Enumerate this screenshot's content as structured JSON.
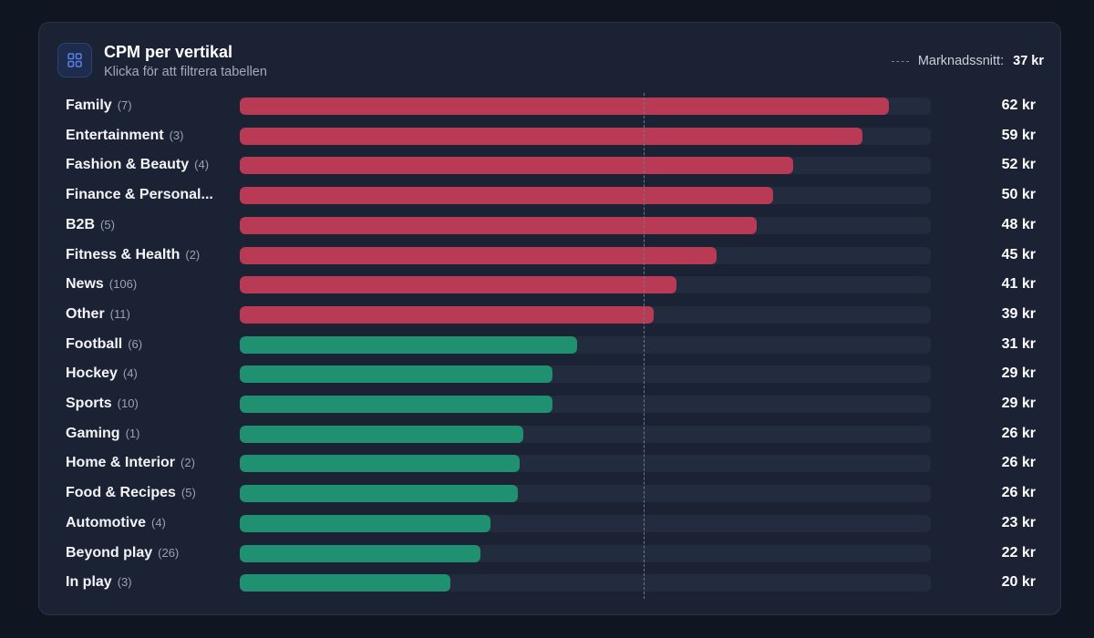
{
  "header": {
    "title": "CPM per vertikal",
    "subtitle": "Klicka för att filtrera tabellen",
    "icon": "grid-icon",
    "average_label": "Marknadssnitt:",
    "average_value": "37 kr"
  },
  "colors": {
    "above_average": "#b93a55",
    "below_average": "#1f9170",
    "track": "#232c3f",
    "accent": "#4d6fe0"
  },
  "chart_data": {
    "type": "bar",
    "orientation": "horizontal",
    "title": "CPM per vertikal",
    "unit": "kr",
    "xlim": [
      0,
      65
    ],
    "reference_line": {
      "label": "Marknadssnitt:",
      "value": 37
    },
    "categories": [
      "Family",
      "Entertainment",
      "Fashion & Beauty",
      "Finance & Personal...",
      "B2B",
      "Fitness & Health",
      "News",
      "Other",
      "Football",
      "Hockey",
      "Sports",
      "Gaming",
      "Home & Interior",
      "Food & Recipes",
      "Automotive",
      "Beyond play",
      "In play"
    ],
    "counts": [
      "(7)",
      "(3)",
      "(4)",
      "",
      "(5)",
      "(2)",
      "(106)",
      "(11)",
      "(6)",
      "(4)",
      "(10)",
      "(1)",
      "(2)",
      "(5)",
      "(4)",
      "(26)",
      "(3)"
    ],
    "values": [
      62,
      59,
      52,
      50,
      48,
      45,
      41,
      39,
      31,
      29,
      29,
      26,
      26,
      26,
      23,
      22,
      20
    ],
    "value_labels": [
      "62 kr",
      "59 kr",
      "52 kr",
      "50 kr",
      "48 kr",
      "45 kr",
      "41 kr",
      "39 kr",
      "31 kr",
      "29 kr",
      "29 kr",
      "26 kr",
      "26 kr",
      "26 kr",
      "23 kr",
      "22 kr",
      "20 kr"
    ],
    "bar_fractions": [
      0.939,
      0.901,
      0.801,
      0.772,
      0.748,
      0.69,
      0.632,
      0.599,
      0.488,
      0.453,
      0.452,
      0.41,
      0.405,
      0.402,
      0.363,
      0.348,
      0.305
    ],
    "reference_fraction": 0.584
  }
}
